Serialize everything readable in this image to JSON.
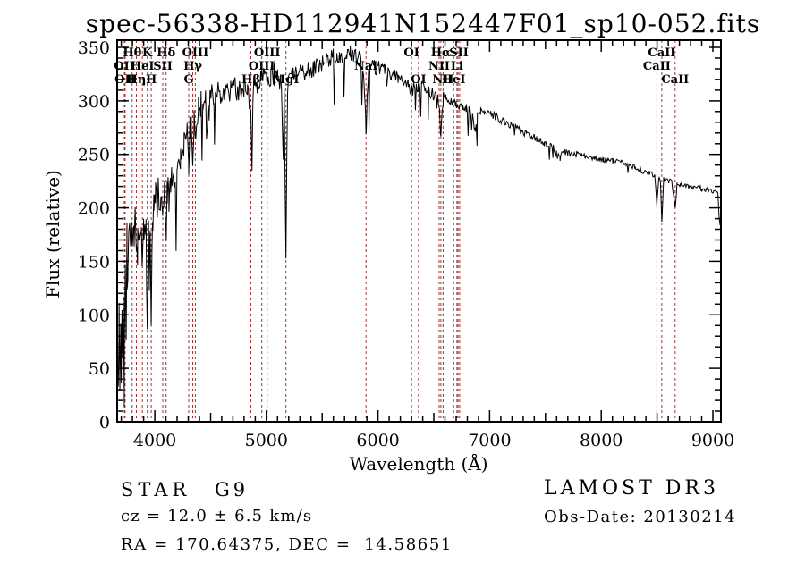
{
  "title": "spec-56338-HD112941N152447F01_sp10-052.fits",
  "annotations": {
    "class_label": "STAR",
    "subclass": "G9",
    "cz_line": "cz = 12.0 ± 6.5 km/s",
    "radec_line": "RA = 170.64375, DEC =  14.58651",
    "survey": "LAMOST DR3",
    "obs_date_line": "Obs-Date: 20130214"
  },
  "chart_data": {
    "type": "line",
    "title": "spec-56338-HD112941N152447F01_sp10-052.fits",
    "xlabel": "Wavelength (Å)",
    "ylabel": "Flux (relative)",
    "xlim": [
      3663,
      9072
    ],
    "ylim": [
      0,
      356.7
    ],
    "x_major_ticks": [
      4000,
      5000,
      6000,
      7000,
      8000,
      9000
    ],
    "x_minor_step": 100,
    "y_major_ticks": [
      0,
      50,
      100,
      150,
      200,
      250,
      300,
      350
    ],
    "y_minor_step": 10,
    "grid": false,
    "line_color": "#000000",
    "marker_line_color": "#a23232",
    "spectral_lines": [
      {
        "wavelength": 3727,
        "label": "OII",
        "row": 2
      },
      {
        "wavelength": 3734,
        "label": "OII",
        "row": 3
      },
      {
        "wavelength": 3798,
        "label": "Hθ",
        "row": 1
      },
      {
        "wavelength": 3835,
        "label": "Hη",
        "row": 3
      },
      {
        "wavelength": 3889,
        "label": "HeI",
        "row": 2
      },
      {
        "wavelength": 3933,
        "label": "K",
        "row": 1
      },
      {
        "wavelength": 3968,
        "label": "H",
        "row": 3
      },
      {
        "wavelength": 4072,
        "label": "SII",
        "row": 2
      },
      {
        "wavelength": 4101,
        "label": "Hδ",
        "row": 1
      },
      {
        "wavelength": 4304,
        "label": "G",
        "row": 3
      },
      {
        "wavelength": 4340,
        "label": "Hγ",
        "row": 2
      },
      {
        "wavelength": 4363,
        "label": "OIII",
        "row": 1
      },
      {
        "wavelength": 4861,
        "label": "Hβ",
        "row": 3
      },
      {
        "wavelength": 4959,
        "label": "OIII",
        "row": 2
      },
      {
        "wavelength": 5007,
        "label": "OIII",
        "row": 1
      },
      {
        "wavelength": 5175,
        "label": "MgI",
        "row": 3
      },
      {
        "wavelength": 5892,
        "label": "NaI",
        "row": 2
      },
      {
        "wavelength": 6300,
        "label": "OI",
        "row": 1
      },
      {
        "wavelength": 6363,
        "label": "OI",
        "row": 3
      },
      {
        "wavelength": 6548,
        "label": "NII",
        "row": 2
      },
      {
        "wavelength": 6563,
        "label": "Hα",
        "row": 1
      },
      {
        "wavelength": 6583,
        "label": "NII",
        "row": 3
      },
      {
        "wavelength": 6678,
        "label": "HeI",
        "row": 3
      },
      {
        "wavelength": 6707,
        "label": "Li",
        "row": 2
      },
      {
        "wavelength": 6724,
        "label": "SII",
        "row": 1
      },
      {
        "wavelength": 8498,
        "label": "CaII",
        "row": 2
      },
      {
        "wavelength": 8542,
        "label": "CaII",
        "row": 1
      },
      {
        "wavelength": 8662,
        "label": "CaII",
        "row": 3
      }
    ],
    "marker_wavelengths": [
      3727,
      3734,
      3798,
      3835,
      3889,
      3933,
      3968,
      4072,
      4101,
      4304,
      4340,
      4363,
      4861,
      4959,
      5007,
      5175,
      5892,
      6300,
      6363,
      6548,
      6563,
      6583,
      6678,
      6707,
      6717,
      6731,
      8498,
      8542,
      8662
    ],
    "envelope": [
      [
        3663,
        2
      ],
      [
        3668,
        55
      ],
      [
        3673,
        8
      ],
      [
        3680,
        95
      ],
      [
        3687,
        25
      ],
      [
        3694,
        120
      ],
      [
        3700,
        15
      ],
      [
        3707,
        130
      ],
      [
        3714,
        30
      ],
      [
        3721,
        115
      ],
      [
        3728,
        40
      ],
      [
        3736,
        140
      ],
      [
        3744,
        90
      ],
      [
        3752,
        155
      ],
      [
        3760,
        165
      ],
      [
        3775,
        178
      ],
      [
        3790,
        172
      ],
      [
        3800,
        180
      ],
      [
        3812,
        175
      ],
      [
        3824,
        185
      ],
      [
        3835,
        160
      ],
      [
        3846,
        188
      ],
      [
        3858,
        178
      ],
      [
        3870,
        185
      ],
      [
        3880,
        170
      ],
      [
        3889,
        148
      ],
      [
        3900,
        182
      ],
      [
        3912,
        190
      ],
      [
        3922,
        175
      ],
      [
        3933,
        72
      ],
      [
        3944,
        180
      ],
      [
        3956,
        188
      ],
      [
        3968,
        95
      ],
      [
        3980,
        185
      ],
      [
        3992,
        200
      ],
      [
        4005,
        210
      ],
      [
        4020,
        205
      ],
      [
        4035,
        215
      ],
      [
        4050,
        210
      ],
      [
        4062,
        218
      ],
      [
        4072,
        192
      ],
      [
        4084,
        212
      ],
      [
        4092,
        205
      ],
      [
        4101,
        168
      ],
      [
        4112,
        215
      ],
      [
        4126,
        222
      ],
      [
        4140,
        218
      ],
      [
        4155,
        228
      ],
      [
        4170,
        232
      ],
      [
        4185,
        228
      ],
      [
        4200,
        235
      ],
      [
        4215,
        240
      ],
      [
        4230,
        246
      ],
      [
        4245,
        252
      ],
      [
        4260,
        258
      ],
      [
        4275,
        264
      ],
      [
        4290,
        268
      ],
      [
        4304,
        228
      ],
      [
        4315,
        272
      ],
      [
        4328,
        278
      ],
      [
        4340,
        250
      ],
      [
        4352,
        282
      ],
      [
        4363,
        270
      ],
      [
        4375,
        288
      ],
      [
        4390,
        292
      ],
      [
        4410,
        296
      ],
      [
        4430,
        298
      ],
      [
        4450,
        300
      ],
      [
        4475,
        302
      ],
      [
        4500,
        304
      ],
      [
        4530,
        306
      ],
      [
        4560,
        308
      ],
      [
        4590,
        306
      ],
      [
        4620,
        309
      ],
      [
        4650,
        311
      ],
      [
        4680,
        309
      ],
      [
        4710,
        312
      ],
      [
        4740,
        310
      ],
      [
        4770,
        312
      ],
      [
        4800,
        313
      ],
      [
        4830,
        309
      ],
      [
        4861,
        283
      ],
      [
        4890,
        314
      ],
      [
        4920,
        317
      ],
      [
        4950,
        319
      ],
      [
        4980,
        321
      ],
      [
        5010,
        319
      ],
      [
        5040,
        322
      ],
      [
        5070,
        324
      ],
      [
        5100,
        321
      ],
      [
        5130,
        319
      ],
      [
        5160,
        308
      ],
      [
        5175,
        152
      ],
      [
        5190,
        314
      ],
      [
        5215,
        322
      ],
      [
        5240,
        326
      ],
      [
        5270,
        328
      ],
      [
        5300,
        329
      ],
      [
        5330,
        327
      ],
      [
        5360,
        330
      ],
      [
        5390,
        329
      ],
      [
        5420,
        331
      ],
      [
        5450,
        332
      ],
      [
        5480,
        334
      ],
      [
        5510,
        335
      ],
      [
        5540,
        336
      ],
      [
        5570,
        338
      ],
      [
        5600,
        340
      ],
      [
        5630,
        341
      ],
      [
        5660,
        339
      ],
      [
        5690,
        342
      ],
      [
        5720,
        344
      ],
      [
        5750,
        345
      ],
      [
        5780,
        343
      ],
      [
        5810,
        340
      ],
      [
        5840,
        337
      ],
      [
        5865,
        334
      ],
      [
        5892,
        272
      ],
      [
        5915,
        333
      ],
      [
        5940,
        332
      ],
      [
        5970,
        331
      ],
      [
        6000,
        332
      ],
      [
        6030,
        330
      ],
      [
        6060,
        328
      ],
      [
        6090,
        326
      ],
      [
        6120,
        325
      ],
      [
        6150,
        323
      ],
      [
        6180,
        322
      ],
      [
        6210,
        320
      ],
      [
        6240,
        318
      ],
      [
        6270,
        316
      ],
      [
        6300,
        308
      ],
      [
        6330,
        315
      ],
      [
        6360,
        312
      ],
      [
        6390,
        313
      ],
      [
        6420,
        311
      ],
      [
        6450,
        309
      ],
      [
        6480,
        307
      ],
      [
        6510,
        306
      ],
      [
        6540,
        303
      ],
      [
        6563,
        270
      ],
      [
        6585,
        303
      ],
      [
        6610,
        302
      ],
      [
        6640,
        300
      ],
      [
        6670,
        298
      ],
      [
        6700,
        297
      ],
      [
        6730,
        295
      ],
      [
        6760,
        294
      ],
      [
        6790,
        293
      ],
      [
        6820,
        291
      ],
      [
        6845,
        288
      ],
      [
        6870,
        271
      ],
      [
        6890,
        292
      ],
      [
        6920,
        291
      ],
      [
        6950,
        290
      ],
      [
        6980,
        289
      ],
      [
        7010,
        288
      ],
      [
        7050,
        285
      ],
      [
        7090,
        283
      ],
      [
        7130,
        280
      ],
      [
        7170,
        278
      ],
      [
        7210,
        276
      ],
      [
        7250,
        274
      ],
      [
        7290,
        271
      ],
      [
        7330,
        269
      ],
      [
        7370,
        267
      ],
      [
        7410,
        265
      ],
      [
        7450,
        263
      ],
      [
        7490,
        261
      ],
      [
        7530,
        259
      ],
      [
        7570,
        256
      ],
      [
        7600,
        250
      ],
      [
        7630,
        247
      ],
      [
        7660,
        253
      ],
      [
        7700,
        252
      ],
      [
        7740,
        251
      ],
      [
        7780,
        250
      ],
      [
        7820,
        249
      ],
      [
        7860,
        248
      ],
      [
        7900,
        247
      ],
      [
        7940,
        246
      ],
      [
        7980,
        246
      ],
      [
        8020,
        245
      ],
      [
        8060,
        244
      ],
      [
        8100,
        244
      ],
      [
        8140,
        243
      ],
      [
        8180,
        243
      ],
      [
        8220,
        242
      ],
      [
        8260,
        240
      ],
      [
        8300,
        238
      ],
      [
        8340,
        236
      ],
      [
        8380,
        234
      ],
      [
        8420,
        233
      ],
      [
        8455,
        231
      ],
      [
        8480,
        229
      ],
      [
        8498,
        204
      ],
      [
        8515,
        228
      ],
      [
        8530,
        227
      ],
      [
        8542,
        186
      ],
      [
        8558,
        227
      ],
      [
        8580,
        226
      ],
      [
        8605,
        225
      ],
      [
        8630,
        224
      ],
      [
        8662,
        199
      ],
      [
        8680,
        223
      ],
      [
        8710,
        222
      ],
      [
        8740,
        221
      ],
      [
        8780,
        220
      ],
      [
        8820,
        219
      ],
      [
        8860,
        219
      ],
      [
        8900,
        218
      ],
      [
        8940,
        217
      ],
      [
        8975,
        216
      ],
      [
        9005,
        215
      ],
      [
        9030,
        214
      ],
      [
        9045,
        212
      ],
      [
        9055,
        190
      ],
      [
        9065,
        184
      ],
      [
        9072,
        183
      ]
    ],
    "noise": {
      "seed": 20130214,
      "sample_step": 8,
      "segments": [
        [
          3663,
          3770,
          40
        ],
        [
          3770,
          4150,
          16
        ],
        [
          4150,
          4500,
          13
        ],
        [
          4500,
          5200,
          11
        ],
        [
          5200,
          6000,
          9
        ],
        [
          6000,
          6600,
          6
        ],
        [
          6600,
          7100,
          4
        ],
        [
          7100,
          7800,
          3.5
        ],
        [
          7800,
          9072,
          2.5
        ]
      ],
      "spikes": [
        {
          "from": 3800,
          "to": 4400,
          "prob": 0.05,
          "depth": 45
        },
        {
          "from": 4400,
          "to": 6000,
          "prob": 0.05,
          "depth": 55
        },
        {
          "from": 6000,
          "to": 7000,
          "prob": 0.03,
          "depth": 25
        },
        {
          "from": 7000,
          "to": 9040,
          "prob": 0.015,
          "depth": 10
        }
      ]
    }
  }
}
